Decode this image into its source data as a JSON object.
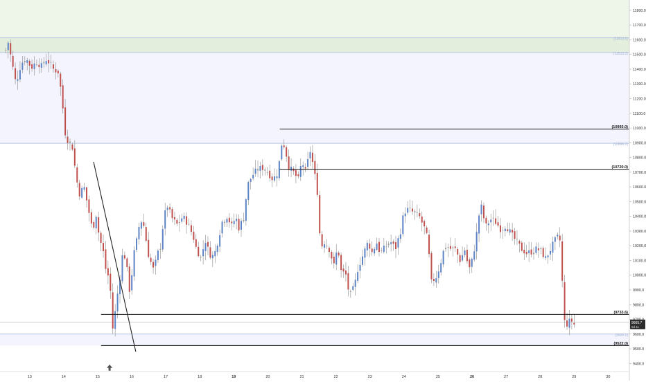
{
  "colors": {
    "background": "#ffffff",
    "up_candle": "#5b83c5",
    "down_candle": "#c0504d",
    "neutral_candle": "#9a9a9a",
    "zone_green": "#eef6ea",
    "zone_green_dark": "#e3efdc",
    "zone_blue": "#f3f4fd",
    "level_line": "#111111",
    "light_line": "#b9c6e2",
    "axis_text": "#333333",
    "grid_label_muted": "#9fb0d3"
  },
  "chart_data": {
    "type": "candlestick",
    "title": "",
    "xlabel": "",
    "ylabel": "",
    "ylim": [
      9350,
      11870
    ],
    "x_ticks": [
      "13",
      "14",
      "15",
      "16",
      "17",
      "18",
      "19",
      "20",
      "21",
      "22",
      "23",
      "24",
      "25",
      "26",
      "27",
      "28",
      "29",
      "30"
    ],
    "x_ticks_bold": [
      "19",
      "26"
    ],
    "y_ticks": [
      9400,
      9500,
      9600,
      9700,
      9800,
      9900,
      10000,
      10100,
      10200,
      10300,
      10400,
      10500,
      10600,
      10700,
      10800,
      10900,
      11000,
      11100,
      11200,
      11300,
      11400,
      11500,
      11600,
      11700,
      11800
    ],
    "price_levels": [
      {
        "label": "10993.0",
        "value": 10993.0,
        "x_start": 20.35,
        "style": "solid"
      },
      {
        "label": "10720.0",
        "value": 10720.0,
        "x_start": 20.35,
        "style": "solid"
      },
      {
        "label": "9733.6",
        "value": 9733.6,
        "x_start": 15.1,
        "style": "solid"
      },
      {
        "label": "9522.0",
        "value": 9522.0,
        "x_start": 15.1,
        "style": "solid"
      }
    ],
    "light_levels": [
      {
        "label": "11613.0",
        "value": 11613.0
      },
      {
        "label": "11513.2",
        "value": 11513.2
      },
      {
        "label": "10896.0",
        "value": 10896.0
      },
      {
        "label": "9600.1",
        "value": 9600.1
      }
    ],
    "zones": [
      {
        "name": "upper-green-zone",
        "from": 11613,
        "to": 11870
      },
      {
        "name": "upper-green-band",
        "from": 11513.2,
        "to": 11613
      },
      {
        "name": "blue-zone",
        "from": 10896,
        "to": 11513.2
      },
      {
        "name": "lower-blue-band",
        "from": 9522,
        "to": 9600.1
      }
    ],
    "trendline": {
      "x1": 14.88,
      "y1": 10770,
      "x2": 16.12,
      "y2": 9480
    },
    "marker": {
      "x": 15.35,
      "y": 9370,
      "shape": "arrow-up"
    },
    "last_price": {
      "value": 9665.7,
      "label": "9665.7",
      "sub_label": "5d 11"
    },
    "current_line": {
      "value": 9680
    },
    "anchors": [
      [
        12.3,
        11530
      ],
      [
        12.38,
        11590
      ],
      [
        12.45,
        11480
      ],
      [
        12.6,
        11300
      ],
      [
        12.75,
        11440
      ],
      [
        12.9,
        11470
      ],
      [
        13.05,
        11410
      ],
      [
        13.2,
        11450
      ],
      [
        13.35,
        11420
      ],
      [
        13.5,
        11470
      ],
      [
        13.7,
        11400
      ],
      [
        13.85,
        11380
      ],
      [
        13.95,
        11200
      ],
      [
        14.05,
        10960
      ],
      [
        14.15,
        10900
      ],
      [
        14.25,
        10880
      ],
      [
        14.35,
        10700
      ],
      [
        14.45,
        10550
      ],
      [
        14.6,
        10600
      ],
      [
        14.75,
        10420
      ],
      [
        14.85,
        10300
      ],
      [
        14.95,
        10420
      ],
      [
        15.05,
        10250
      ],
      [
        15.15,
        10180
      ],
      [
        15.25,
        10020
      ],
      [
        15.35,
        9980
      ],
      [
        15.45,
        9620
      ],
      [
        15.55,
        9820
      ],
      [
        15.65,
        9980
      ],
      [
        15.75,
        10180
      ],
      [
        15.85,
        10060
      ],
      [
        15.95,
        9870
      ],
      [
        16.05,
        10130
      ],
      [
        16.15,
        10240
      ],
      [
        16.25,
        10380
      ],
      [
        16.35,
        10340
      ],
      [
        16.5,
        10130
      ],
      [
        16.65,
        10030
      ],
      [
        16.75,
        10140
      ],
      [
        16.85,
        10200
      ],
      [
        16.95,
        10400
      ],
      [
        17.05,
        10470
      ],
      [
        17.2,
        10380
      ],
      [
        17.35,
        10340
      ],
      [
        17.5,
        10400
      ],
      [
        17.65,
        10350
      ],
      [
        17.8,
        10270
      ],
      [
        17.9,
        10180
      ],
      [
        18.05,
        10110
      ],
      [
        18.15,
        10250
      ],
      [
        18.25,
        10170
      ],
      [
        18.35,
        10120
      ],
      [
        18.45,
        10160
      ],
      [
        18.55,
        10250
      ],
      [
        18.65,
        10360
      ],
      [
        18.8,
        10400
      ],
      [
        18.95,
        10330
      ],
      [
        19.05,
        10400
      ],
      [
        19.15,
        10320
      ],
      [
        19.3,
        10400
      ],
      [
        19.4,
        10610
      ],
      [
        19.55,
        10680
      ],
      [
        19.7,
        10720
      ],
      [
        19.85,
        10730
      ],
      [
        20.0,
        10700
      ],
      [
        20.15,
        10650
      ],
      [
        20.3,
        10700
      ],
      [
        20.4,
        10890
      ],
      [
        20.5,
        10880
      ],
      [
        20.6,
        10740
      ],
      [
        20.75,
        10700
      ],
      [
        20.9,
        10650
      ],
      [
        21.0,
        10780
      ],
      [
        21.1,
        10700
      ],
      [
        21.25,
        10850
      ],
      [
        21.35,
        10720
      ],
      [
        21.45,
        10580
      ],
      [
        21.55,
        10180
      ],
      [
        21.65,
        10230
      ],
      [
        21.8,
        10180
      ],
      [
        21.95,
        10060
      ],
      [
        22.05,
        10200
      ],
      [
        22.15,
        10030
      ],
      [
        22.3,
        10000
      ],
      [
        22.4,
        9850
      ],
      [
        22.55,
        9930
      ],
      [
        22.65,
        10050
      ],
      [
        22.8,
        10140
      ],
      [
        22.95,
        10230
      ],
      [
        23.05,
        10150
      ],
      [
        23.2,
        10220
      ],
      [
        23.3,
        10150
      ],
      [
        23.45,
        10190
      ],
      [
        23.6,
        10230
      ],
      [
        23.75,
        10180
      ],
      [
        23.9,
        10300
      ],
      [
        24.0,
        10430
      ],
      [
        24.15,
        10450
      ],
      [
        24.3,
        10420
      ],
      [
        24.45,
        10400
      ],
      [
        24.6,
        10320
      ],
      [
        24.7,
        10240
      ],
      [
        24.8,
        9950
      ],
      [
        24.95,
        9990
      ],
      [
        25.05,
        10060
      ],
      [
        25.2,
        10200
      ],
      [
        25.35,
        10180
      ],
      [
        25.5,
        10180
      ],
      [
        25.65,
        10100
      ],
      [
        25.8,
        10180
      ],
      [
        25.9,
        10030
      ],
      [
        26.0,
        10100
      ],
      [
        26.1,
        10220
      ],
      [
        26.25,
        10490
      ],
      [
        26.4,
        10330
      ],
      [
        26.55,
        10380
      ],
      [
        26.7,
        10360
      ],
      [
        26.85,
        10310
      ],
      [
        27.0,
        10340
      ],
      [
        27.15,
        10280
      ],
      [
        27.3,
        10230
      ],
      [
        27.45,
        10180
      ],
      [
        27.6,
        10150
      ],
      [
        27.75,
        10160
      ],
      [
        27.9,
        10180
      ],
      [
        28.05,
        10160
      ],
      [
        28.15,
        10110
      ],
      [
        28.25,
        10150
      ],
      [
        28.4,
        10220
      ],
      [
        28.5,
        10260
      ],
      [
        28.6,
        10230
      ],
      [
        28.7,
        9690
      ],
      [
        28.8,
        9665
      ],
      [
        28.9,
        9700
      ],
      [
        29.0,
        9665
      ]
    ]
  }
}
